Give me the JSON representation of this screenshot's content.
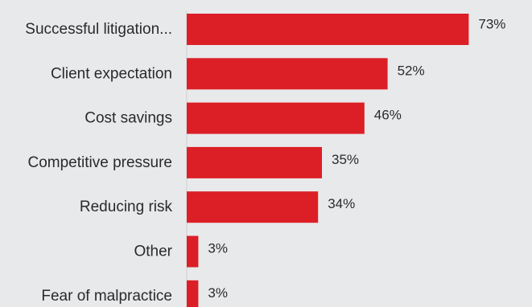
{
  "chart_data": {
    "type": "bar",
    "orientation": "horizontal",
    "categories": [
      "Successful litigation...",
      "Client expectation",
      "Cost savings",
      "Competitive pressure",
      "Reducing risk",
      "Other",
      "Fear of malpractice"
    ],
    "values": [
      73,
      52,
      46,
      35,
      34,
      3,
      3
    ],
    "value_labels": [
      "73%",
      "52%",
      "46%",
      "35%",
      "34%",
      "3%",
      "3%"
    ],
    "value_unit": "%",
    "xlim": [
      0,
      80
    ],
    "grid": false,
    "legend": "none",
    "bar_color": "#dc1f26",
    "axis_color": "#cfd0d3",
    "background": "#e8e9eb"
  }
}
